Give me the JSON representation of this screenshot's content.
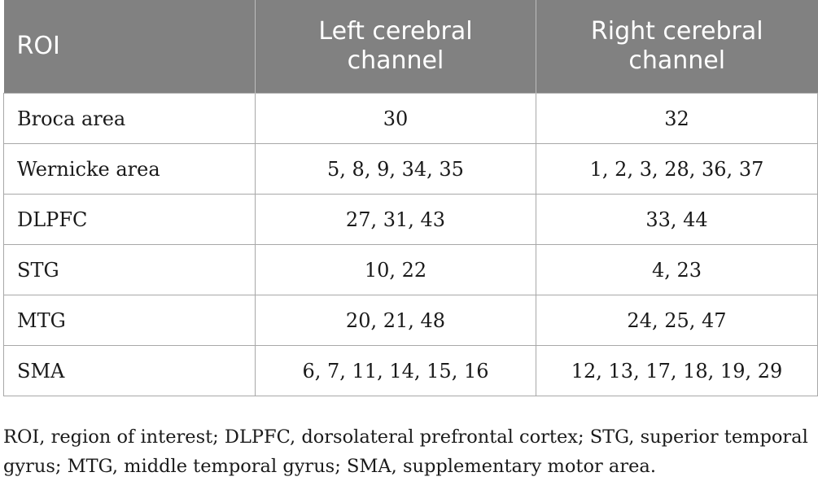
{
  "table": {
    "headers": [
      "ROI",
      "Left cerebral channel",
      "Right cerebral channel"
    ],
    "rows": [
      {
        "roi": "Broca area",
        "left": "30",
        "right": "32"
      },
      {
        "roi": "Wernicke area",
        "left": "5, 8, 9, 34, 35",
        "right": "1, 2, 3, 28, 36, 37"
      },
      {
        "roi": "DLPFC",
        "left": "27, 31, 43",
        "right": "33, 44"
      },
      {
        "roi": "STG",
        "left": "10, 22",
        "right": "4, 23"
      },
      {
        "roi": "MTG",
        "left": "20, 21, 48",
        "right": "24, 25, 47"
      },
      {
        "roi": "SMA",
        "left": "6, 7, 11, 14, 15, 16",
        "right": "12, 13, 17, 18, 19, 29"
      }
    ]
  },
  "colors": {
    "header_bg": "#818181",
    "header_text": "#ffffff",
    "border": "#a8a8a8"
  },
  "footnote": "ROI, region of interest; DLPFC, dorsolateral prefrontal cortex; STG, superior temporal gyrus; MTG, middle temporal gyrus; SMA, supplementary motor area."
}
